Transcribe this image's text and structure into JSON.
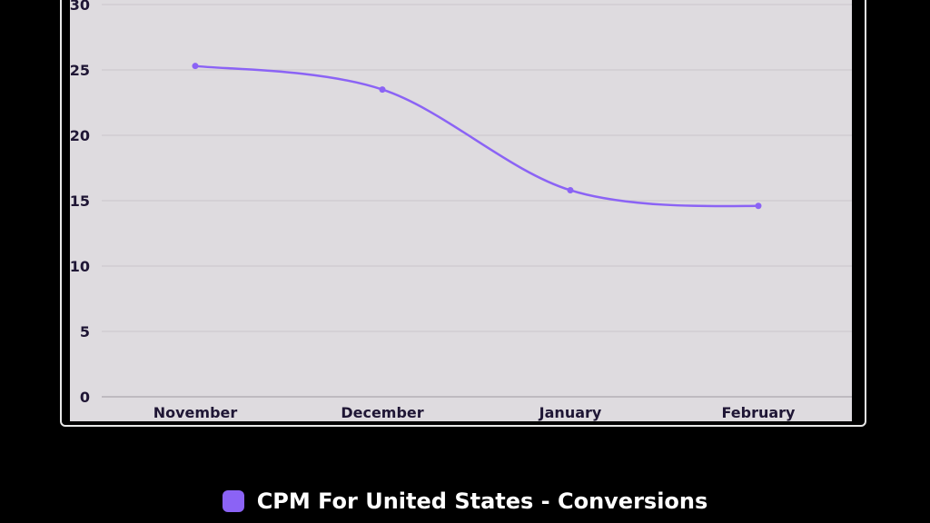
{
  "chart_data": {
    "type": "line",
    "title": "",
    "xlabel": "",
    "ylabel": "",
    "categories": [
      "November",
      "December",
      "January",
      "February"
    ],
    "series": [
      {
        "name": "CPM For United States - Conversions",
        "values": [
          25.3,
          23.5,
          15.8,
          14.6
        ],
        "color": "#8b63f5"
      }
    ],
    "ylim": [
      0,
      30
    ],
    "yticks": [
      0,
      5,
      10,
      15,
      20,
      25,
      30
    ],
    "grid": true,
    "legend_position": "bottom-center"
  },
  "colors": {
    "background": "#000000",
    "panel": "#dedbdf",
    "grid": "#c9c6cb",
    "axis": "#9e9aa2",
    "text": "#1f1635"
  }
}
